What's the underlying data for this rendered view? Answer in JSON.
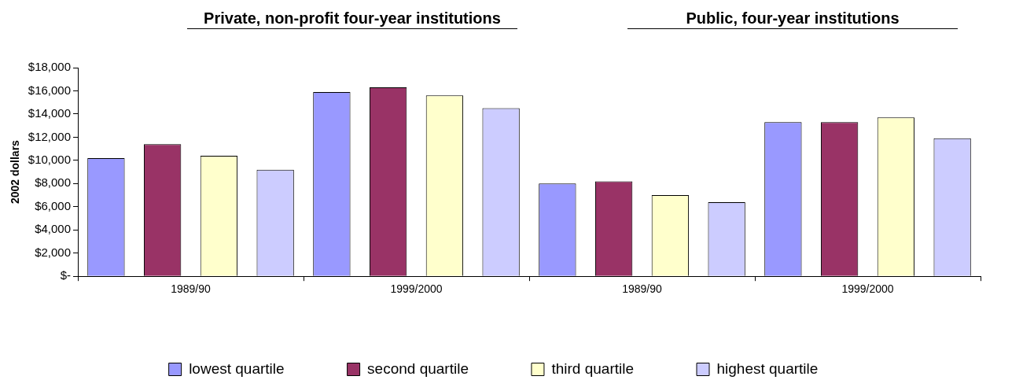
{
  "chart_data": {
    "type": "bar",
    "ylabel": "2002 dollars",
    "annotations": [
      "Private, non-profit four-year institutions",
      "Public, four-year institutions"
    ],
    "categories": [
      "1989/90",
      "1999/2000",
      "1989/90",
      "1999/2000"
    ],
    "series": [
      {
        "name": "lowest quartile",
        "color": "#9999ff",
        "values": [
          10200,
          15900,
          8000,
          13300
        ]
      },
      {
        "name": "second quartile",
        "color": "#993366",
        "values": [
          11400,
          16300,
          8200,
          13300
        ]
      },
      {
        "name": "third quartile",
        "color": "#ffffcc",
        "values": [
          10400,
          15600,
          7000,
          13700
        ]
      },
      {
        "name": "highest quartile",
        "color": "#ccccff",
        "values": [
          9200,
          14500,
          6400,
          11900
        ]
      }
    ],
    "ylim": [
      0,
      18000
    ],
    "yticks": [
      {
        "value": 0,
        "label": "$-"
      },
      {
        "value": 2000,
        "label": "$2,000"
      },
      {
        "value": 4000,
        "label": "$4,000"
      },
      {
        "value": 6000,
        "label": "$6,000"
      },
      {
        "value": 8000,
        "label": "$8,000"
      },
      {
        "value": 10000,
        "label": "$10,000"
      },
      {
        "value": 12000,
        "label": "$12,000"
      },
      {
        "value": 14000,
        "label": "$14,000"
      },
      {
        "value": 16000,
        "label": "$16,000"
      },
      {
        "value": 18000,
        "label": "$18,000"
      }
    ],
    "grid": false,
    "legend": "bottom"
  }
}
